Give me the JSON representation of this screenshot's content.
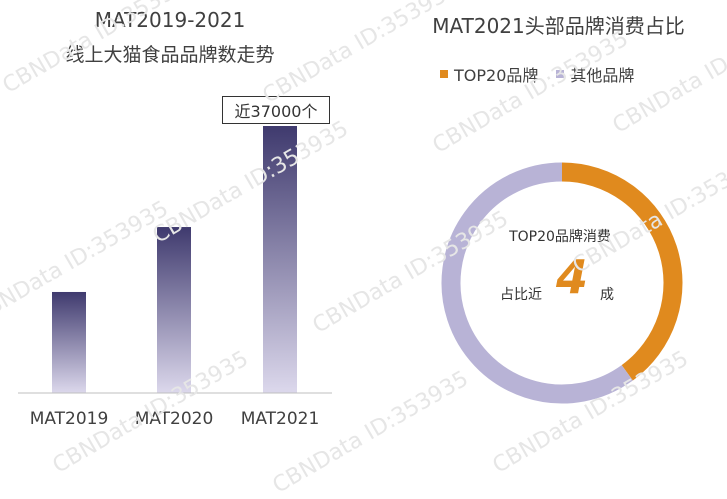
{
  "watermark": "CBNData ID:353935",
  "left_chart": {
    "title_line1": "MAT2019-2021",
    "title_line2": "线上大猫食品品牌数走势",
    "callout": "近37000个",
    "colors": {
      "top": "#3f3a6e",
      "bottom": "#dcd8ec",
      "axis": "#bfbfbf"
    }
  },
  "right_chart": {
    "title": "MAT2021头部品牌消费占比",
    "legend": [
      {
        "name": "TOP20品牌",
        "color": "#e08a1e"
      },
      {
        "name": "其他品牌",
        "color": "#b8b3d6"
      }
    ],
    "center_line1": "TOP20品牌消费",
    "center_pre": "占比近",
    "center_number": "4",
    "center_post": "成"
  },
  "chart_data": [
    {
      "type": "bar",
      "categories": [
        "MAT2019",
        "MAT2020",
        "MAT2021"
      ],
      "values": [
        14000,
        23000,
        37000
      ],
      "title": "MAT2019-2021 线上大猫食品品牌数走势",
      "ylim": [
        0,
        37000
      ],
      "annotations": [
        "近37000个"
      ]
    },
    {
      "type": "pie",
      "donut": true,
      "categories": [
        "TOP20品牌",
        "其他品牌"
      ],
      "values": [
        40,
        60
      ],
      "title": "MAT2021头部品牌消费占比"
    }
  ]
}
